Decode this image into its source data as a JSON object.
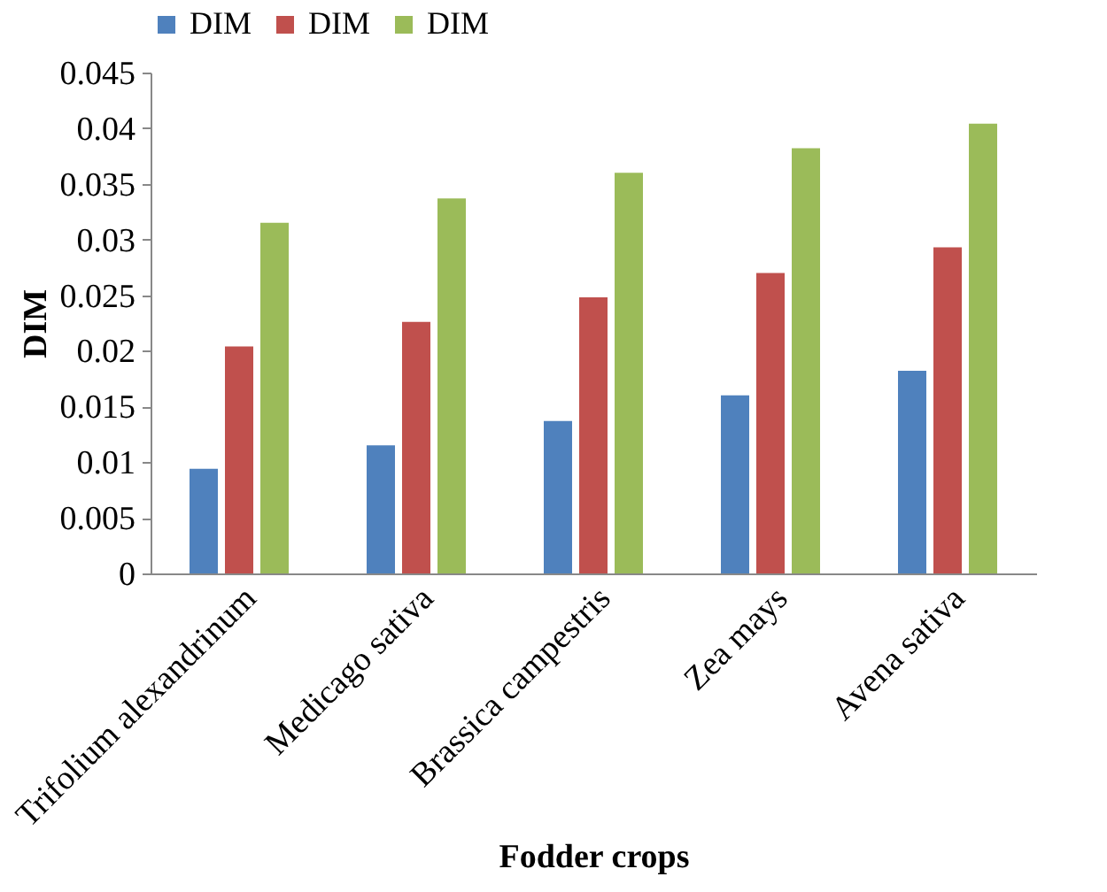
{
  "chart_data": {
    "type": "bar",
    "xlabel": "Fodder crops",
    "ylabel": "DIM",
    "categories": [
      "Trifolium alexandrinum",
      "Medicago sativa",
      "Brassica campestris",
      "Zea mays",
      "Avena sativa"
    ],
    "series": [
      {
        "name": "DIM",
        "color": "#4f81bd",
        "values": [
          0.0094,
          0.0115,
          0.0137,
          0.016,
          0.0182
        ]
      },
      {
        "name": "DIM",
        "color": "#c0504d",
        "values": [
          0.0204,
          0.0226,
          0.0248,
          0.027,
          0.0293
        ]
      },
      {
        "name": "DIM",
        "color": "#9bbb59",
        "values": [
          0.0315,
          0.0337,
          0.036,
          0.0382,
          0.0404
        ]
      }
    ],
    "ylim": [
      0,
      0.045
    ],
    "yticks": [
      0,
      0.005,
      0.01,
      0.015,
      0.02,
      0.025,
      0.03,
      0.035,
      0.04,
      0.045
    ],
    "grid": false,
    "legend": "top"
  }
}
